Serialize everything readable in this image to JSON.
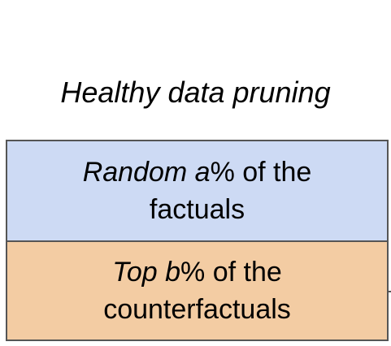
{
  "title": "Healthy data pruning",
  "blocks": [
    {
      "line1_italic": "Random a",
      "line1_rest": "% of the",
      "line2": "factuals",
      "fill_color": "#cddaf4"
    },
    {
      "line1_italic": "Top b",
      "line1_rest": "% of the",
      "line2": "counterfactuals",
      "fill_color": "#f3cca3"
    }
  ],
  "border_color": "#555555"
}
